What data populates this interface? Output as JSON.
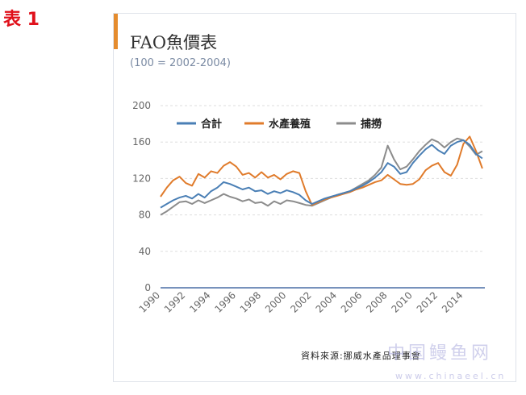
{
  "page_label": "表 1",
  "source_note": "資料來源:挪威水產品理事會",
  "watermark": "中国鳗鱼网",
  "watermark_url": "www.chinaeel.cn",
  "colors": {
    "total": "#4a7fb5",
    "aquaculture": "#e07b2b",
    "capture": "#8c8c8c",
    "accent": "#e58c2e",
    "axis": "#4a6fa5"
  },
  "chart_data": {
    "type": "line",
    "title": "FAO魚價表",
    "subtitle": "(100 = 2002-2004)",
    "xlabel": "",
    "ylabel": "",
    "xlim": [
      1990,
      2015.7
    ],
    "ylim": [
      0,
      200
    ],
    "y_ticks": [
      0,
      40,
      80,
      120,
      160,
      200
    ],
    "x_ticks": [
      1990,
      1992,
      1994,
      1996,
      1998,
      2000,
      2002,
      2004,
      2006,
      2008,
      2010,
      2012,
      2014
    ],
    "grid": true,
    "legend_position": "top",
    "series": [
      {
        "name": "合計",
        "key": "total",
        "x": [
          1990,
          1990.5,
          1991,
          1991.5,
          1992,
          1992.5,
          1993,
          1993.5,
          1994,
          1994.5,
          1995,
          1995.5,
          1996,
          1996.5,
          1997,
          1997.5,
          1998,
          1998.5,
          1999,
          1999.5,
          2000,
          2000.5,
          2001,
          2001.5,
          2002,
          2002.5,
          2003,
          2003.5,
          2004,
          2004.5,
          2005,
          2005.5,
          2006,
          2006.5,
          2007,
          2007.5,
          2008,
          2008.5,
          2009,
          2009.5,
          2010,
          2010.5,
          2011,
          2011.5,
          2012,
          2012.5,
          2013,
          2013.5,
          2014,
          2014.5,
          2015,
          2015.5
        ],
        "values": [
          88,
          92,
          96,
          99,
          101,
          98,
          103,
          99,
          106,
          110,
          116,
          114,
          111,
          108,
          110,
          106,
          107,
          103,
          106,
          104,
          107,
          105,
          102,
          96,
          92,
          95,
          98,
          100,
          102,
          104,
          106,
          109,
          112,
          116,
          121,
          127,
          137,
          133,
          125,
          127,
          137,
          145,
          152,
          157,
          151,
          147,
          156,
          160,
          162,
          157,
          147,
          142
        ]
      },
      {
        "name": "水產養殖",
        "key": "aquaculture",
        "x": [
          1990,
          1990.5,
          1991,
          1991.5,
          1992,
          1992.5,
          1993,
          1993.5,
          1994,
          1994.5,
          1995,
          1995.5,
          1996,
          1996.5,
          1997,
          1997.5,
          1998,
          1998.5,
          1999,
          1999.5,
          2000,
          2000.5,
          2001,
          2001.5,
          2002,
          2002.5,
          2003,
          2003.5,
          2004,
          2004.5,
          2005,
          2005.5,
          2006,
          2006.5,
          2007,
          2007.5,
          2008,
          2008.5,
          2009,
          2009.5,
          2010,
          2010.5,
          2011,
          2011.5,
          2012,
          2012.5,
          2013,
          2013.5,
          2014,
          2014.5,
          2015,
          2015.5
        ],
        "values": [
          100,
          110,
          118,
          122,
          115,
          112,
          125,
          121,
          128,
          126,
          134,
          138,
          133,
          124,
          126,
          121,
          127,
          121,
          124,
          119,
          125,
          128,
          126,
          106,
          91,
          94,
          97,
          99,
          101,
          103,
          105,
          108,
          110,
          113,
          116,
          118,
          124,
          119,
          114,
          113,
          114,
          119,
          129,
          134,
          137,
          127,
          123,
          135,
          158,
          166,
          150,
          131
        ]
      },
      {
        "name": "捕撈",
        "key": "capture",
        "x": [
          1990,
          1990.5,
          1991,
          1991.5,
          1992,
          1992.5,
          1993,
          1993.5,
          1994,
          1994.5,
          1995,
          1995.5,
          1996,
          1996.5,
          1997,
          1997.5,
          1998,
          1998.5,
          1999,
          1999.5,
          2000,
          2000.5,
          2001,
          2001.5,
          2002,
          2002.5,
          2003,
          2003.5,
          2004,
          2004.5,
          2005,
          2005.5,
          2006,
          2006.5,
          2007,
          2007.5,
          2008,
          2008.5,
          2009,
          2009.5,
          2010,
          2010.5,
          2011,
          2011.5,
          2012,
          2012.5,
          2013,
          2013.5,
          2014,
          2014.5,
          2015,
          2015.5
        ],
        "values": [
          80,
          84,
          89,
          94,
          95,
          92,
          96,
          93,
          96,
          99,
          103,
          100,
          98,
          95,
          97,
          93,
          94,
          90,
          95,
          92,
          96,
          95,
          93,
          91,
          90,
          93,
          96,
          99,
          102,
          104,
          106,
          110,
          114,
          118,
          124,
          132,
          156,
          141,
          130,
          133,
          141,
          150,
          157,
          163,
          160,
          154,
          160,
          164,
          162,
          155,
          146,
          150
        ]
      }
    ]
  }
}
